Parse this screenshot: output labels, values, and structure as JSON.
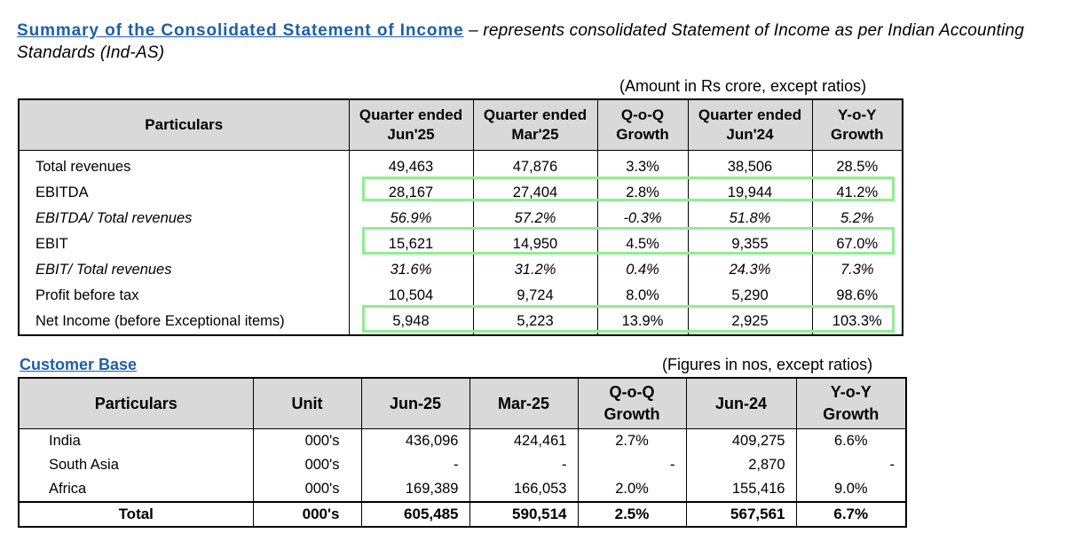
{
  "heading": {
    "title": "Summary of the Consolidated Statement of Income",
    "description": " – represents consolidated Statement of Income as per Indian Accounting Standards (Ind-AS)"
  },
  "income": {
    "note": "(Amount in Rs crore, except ratios)",
    "headers": [
      "Particulars",
      "Quarter ended Jun'25",
      "Quarter ended Mar'25",
      "Q-o-Q Growth",
      "Quarter ended Jun'24",
      "Y-o-Y Growth"
    ],
    "rows": [
      [
        "Total revenues",
        "49,463",
        "47,876",
        "3.3%",
        "38,506",
        "28.5%"
      ],
      [
        "EBITDA",
        "28,167",
        "27,404",
        "2.8%",
        "19,944",
        "41.2%"
      ],
      [
        "EBITDA/ Total revenues",
        "56.9%",
        "57.2%",
        "-0.3%",
        "51.8%",
        "5.2%"
      ],
      [
        "EBIT",
        "15,621",
        "14,950",
        "4.5%",
        "9,355",
        "67.0%"
      ],
      [
        "EBIT/ Total revenues",
        "31.6%",
        "31.2%",
        "0.4%",
        "24.3%",
        "7.3%"
      ],
      [
        "Profit before tax",
        "10,504",
        "9,724",
        "8.0%",
        "5,290",
        "98.6%"
      ],
      [
        "Net Income (before Exceptional items)",
        "5,948",
        "5,223",
        "13.9%",
        "2,925",
        "103.3%"
      ]
    ]
  },
  "customer": {
    "title": "Customer Base",
    "note": "(Figures in nos, except ratios)",
    "headers": [
      "Particulars",
      "Unit",
      "Jun-25",
      "Mar-25",
      "Q-o-Q Growth",
      "Jun-24",
      "Y-o-Y Growth"
    ],
    "rows": [
      [
        "India",
        "000's",
        "436,096",
        "424,461",
        "2.7%",
        "409,275",
        "6.6%"
      ],
      [
        "South Asia",
        "000's",
        "-",
        "-",
        "-",
        "2,870",
        "-"
      ],
      [
        "Africa",
        "000's",
        "169,389",
        "166,053",
        "2.0%",
        "155,416",
        "9.0%"
      ],
      [
        "Total",
        "000's",
        "605,485",
        "590,514",
        "2.5%",
        "567,561",
        "6.7%"
      ]
    ]
  },
  "colors": {
    "title_blue": "#1f5fa8",
    "header_gray": "#d9d9d9",
    "highlight_green": "#90ee90"
  }
}
